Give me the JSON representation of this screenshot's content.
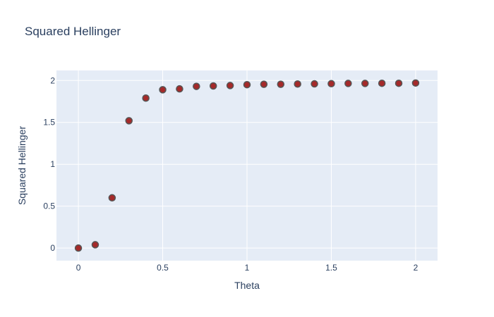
{
  "chart_data": {
    "type": "scatter",
    "title": "Squared Hellinger",
    "xlabel": "Theta",
    "ylabel": "Squared Hellinger",
    "xlim": [
      -0.13,
      2.13
    ],
    "ylim": [
      -0.15,
      2.12
    ],
    "grid": true,
    "colors": {
      "plot_background": "#e5ecf6",
      "grid": "#ffffff",
      "marker_fill": "#a52a2a",
      "marker_line": "#555555",
      "text": "#2a3f5f"
    },
    "x_ticks": [
      {
        "value": 0,
        "label": "0"
      },
      {
        "value": 0.5,
        "label": "0.5"
      },
      {
        "value": 1,
        "label": "1"
      },
      {
        "value": 1.5,
        "label": "1.5"
      },
      {
        "value": 2,
        "label": "2"
      }
    ],
    "y_ticks": [
      {
        "value": 0,
        "label": "0"
      },
      {
        "value": 0.5,
        "label": "0.5"
      },
      {
        "value": 1,
        "label": "1"
      },
      {
        "value": 1.5,
        "label": "1.5"
      },
      {
        "value": 2,
        "label": "2"
      }
    ],
    "series": [
      {
        "x": [
          0,
          0.1,
          0.2,
          0.3,
          0.4,
          0.5,
          0.6,
          0.7,
          0.8,
          0.9,
          1.0,
          1.1,
          1.2,
          1.3,
          1.4,
          1.5,
          1.6,
          1.7,
          1.8,
          1.9,
          2.0
        ],
        "y": [
          0.0,
          0.04,
          0.6,
          1.52,
          1.79,
          1.89,
          1.9,
          1.93,
          1.935,
          1.94,
          1.95,
          1.955,
          1.955,
          1.958,
          1.96,
          1.962,
          1.965,
          1.965,
          1.967,
          1.967,
          1.97
        ]
      }
    ]
  }
}
